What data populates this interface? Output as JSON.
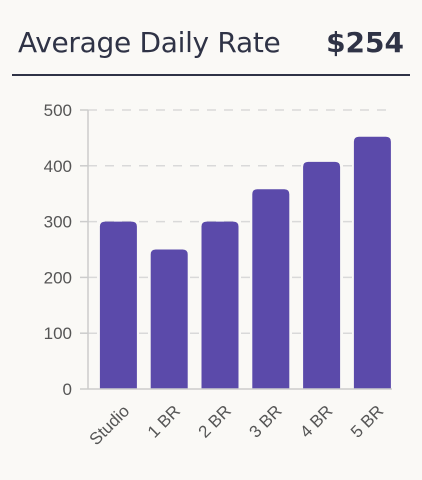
{
  "header": {
    "title": "Average Daily Rate",
    "value": "$254"
  },
  "colors": {
    "bar": "#5b4aaa",
    "grid": "#d9d9d9",
    "axis": "#cccccc",
    "text": "#2f3346"
  },
  "chart_data": {
    "type": "bar",
    "categories": [
      "Studio",
      "1 BR",
      "2 BR",
      "3 BR",
      "4 BR",
      "5 BR"
    ],
    "values": [
      300,
      250,
      300,
      358,
      407,
      452
    ],
    "title": "",
    "xlabel": "",
    "ylabel": "",
    "ylim": [
      0,
      500
    ],
    "yticks": [
      0,
      100,
      200,
      300,
      400,
      500
    ],
    "grid": "horizontal-dashed",
    "legend": "none"
  }
}
